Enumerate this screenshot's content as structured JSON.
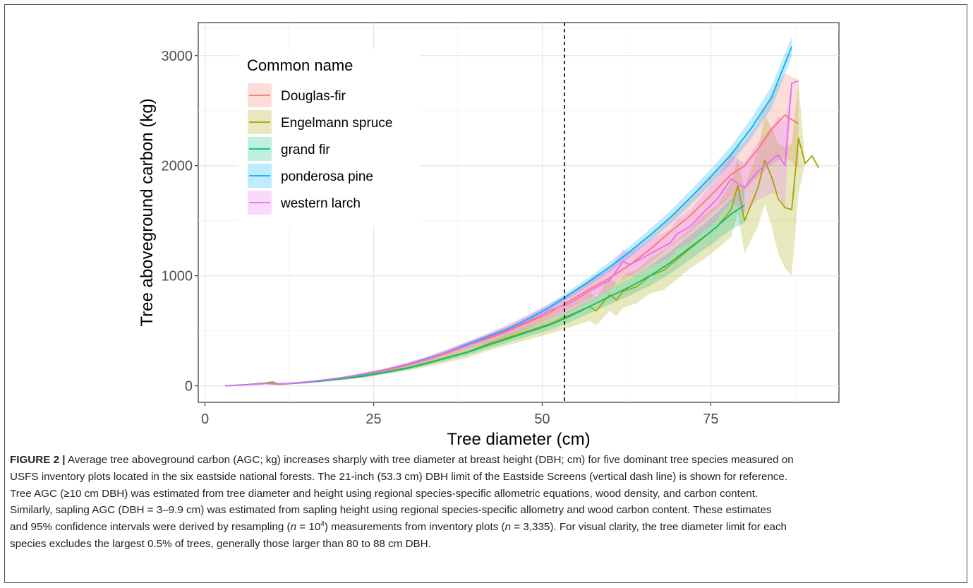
{
  "chart_data": {
    "type": "line",
    "xlabel": "Tree diameter (cm)",
    "ylabel": "Tree aboveground carbon (kg)",
    "xlim": [
      -1,
      94
    ],
    "ylim": [
      -150,
      3300
    ],
    "xticks": [
      0,
      25,
      50,
      75
    ],
    "yticks": [
      0,
      1000,
      2000,
      3000
    ],
    "grid": true,
    "vline": 53.3,
    "legend": {
      "title": "Common name",
      "position": "top-left, inside plot"
    },
    "series": [
      {
        "name": "Douglas-fir",
        "color": "#F8766D",
        "x": [
          3,
          6,
          9,
          11,
          12,
          15,
          18,
          21,
          24,
          27,
          30,
          33,
          36,
          39,
          42,
          45,
          48,
          51,
          54,
          57,
          60,
          63,
          66,
          69,
          72,
          75,
          78,
          80,
          82,
          84,
          86,
          88
        ],
        "y": [
          0,
          10,
          20,
          15,
          20,
          35,
          55,
          80,
          110,
          145,
          190,
          240,
          300,
          370,
          430,
          500,
          580,
          660,
          770,
          880,
          980,
          1100,
          1240,
          1400,
          1550,
          1730,
          1920,
          2000,
          2150,
          2330,
          2460,
          2380
        ],
        "band": [
          2,
          3,
          4,
          4,
          5,
          6,
          8,
          10,
          12,
          15,
          18,
          22,
          28,
          35,
          40,
          50,
          60,
          65,
          70,
          85,
          100,
          110,
          120,
          130,
          150,
          170,
          200,
          220,
          250,
          320,
          380,
          400
        ]
      },
      {
        "name": "Engelmann spruce",
        "color": "#A3A500",
        "x": [
          3,
          6,
          9,
          10,
          11,
          12,
          15,
          18,
          21,
          24,
          27,
          30,
          33,
          36,
          39,
          42,
          45,
          48,
          51,
          54,
          57,
          58,
          60,
          61,
          62,
          64,
          66,
          68,
          70,
          72,
          74,
          76,
          78,
          79,
          80,
          81,
          82,
          83,
          84,
          85,
          86,
          87,
          88,
          89,
          90,
          91
        ],
        "y": [
          0,
          10,
          25,
          35,
          15,
          18,
          32,
          50,
          70,
          95,
          130,
          165,
          210,
          260,
          310,
          380,
          440,
          500,
          560,
          640,
          720,
          680,
          830,
          780,
          860,
          900,
          1000,
          1050,
          1150,
          1250,
          1350,
          1450,
          1600,
          1820,
          1500,
          1650,
          1800,
          2050,
          1900,
          1700,
          1620,
          1600,
          2250,
          2020,
          2090,
          1980
        ],
        "band": [
          3,
          5,
          10,
          12,
          8,
          8,
          10,
          12,
          15,
          18,
          22,
          28,
          35,
          45,
          55,
          60,
          70,
          80,
          90,
          110,
          130,
          130,
          150,
          150,
          150,
          150,
          160,
          180,
          180,
          180,
          200,
          200,
          250,
          250,
          300,
          320,
          350,
          400,
          450,
          500,
          550,
          600,
          500,
          0,
          0,
          0
        ]
      },
      {
        "name": "grand fir",
        "color": "#00BF7D",
        "x": [
          3,
          6,
          9,
          12,
          15,
          18,
          21,
          24,
          27,
          30,
          33,
          36,
          39,
          42,
          45,
          48,
          51,
          54,
          57,
          60,
          63,
          66,
          69,
          72,
          75,
          78,
          80
        ],
        "y": [
          0,
          10,
          20,
          18,
          30,
          48,
          68,
          92,
          125,
          160,
          205,
          255,
          305,
          370,
          430,
          490,
          550,
          630,
          720,
          810,
          900,
          1000,
          1120,
          1260,
          1400,
          1560,
          1640
        ],
        "band": [
          2,
          3,
          4,
          4,
          5,
          6,
          8,
          10,
          12,
          15,
          18,
          22,
          26,
          30,
          35,
          40,
          45,
          55,
          60,
          70,
          80,
          90,
          100,
          110,
          120,
          140,
          160
        ]
      },
      {
        "name": "ponderosa pine",
        "color": "#00B0F6",
        "x": [
          3,
          6,
          9,
          12,
          15,
          18,
          21,
          24,
          27,
          30,
          33,
          36,
          39,
          42,
          45,
          48,
          51,
          54,
          57,
          60,
          63,
          66,
          69,
          72,
          75,
          78,
          81,
          84,
          87
        ],
        "y": [
          0,
          10,
          22,
          20,
          35,
          55,
          80,
          110,
          150,
          195,
          250,
          310,
          380,
          450,
          520,
          610,
          710,
          830,
          950,
          1080,
          1220,
          1370,
          1530,
          1710,
          1900,
          2100,
          2340,
          2620,
          3080
        ],
        "band": [
          2,
          3,
          4,
          4,
          5,
          6,
          7,
          8,
          10,
          12,
          14,
          16,
          18,
          20,
          22,
          25,
          30,
          35,
          40,
          45,
          50,
          55,
          60,
          65,
          70,
          80,
          90,
          100,
          90
        ]
      },
      {
        "name": "western larch",
        "color": "#E76BF3",
        "x": [
          3,
          6,
          9,
          12,
          15,
          18,
          21,
          24,
          27,
          30,
          33,
          36,
          39,
          42,
          45,
          48,
          51,
          54,
          57,
          60,
          62,
          63,
          66,
          69,
          70,
          72,
          74,
          76,
          78,
          80,
          82,
          84,
          85,
          86,
          87,
          88
        ],
        "y": [
          0,
          10,
          20,
          18,
          35,
          55,
          80,
          115,
          150,
          195,
          245,
          310,
          370,
          440,
          510,
          590,
          680,
          750,
          860,
          960,
          1130,
          1100,
          1200,
          1300,
          1380,
          1450,
          1580,
          1700,
          1880,
          1800,
          1950,
          2050,
          2100,
          2000,
          2750,
          2770
        ],
        "band": [
          2,
          3,
          4,
          4,
          5,
          7,
          9,
          12,
          15,
          18,
          22,
          28,
          35,
          40,
          50,
          60,
          70,
          80,
          90,
          100,
          110,
          110,
          120,
          130,
          140,
          150,
          170,
          190,
          210,
          230,
          260,
          300,
          350,
          400,
          0,
          0
        ]
      }
    ]
  },
  "caption": {
    "lead": "FIGURE 2 |",
    "line1_rest": " Average tree aboveground carbon (AGC; kg) increases sharply with tree diameter at breast height (DBH; cm) for five dominant tree species measured on",
    "line2": "USFS inventory plots located in the six eastside national forests. The 21-inch (53.3 cm) DBH limit of the Eastside Screens (vertical dash line) is shown for reference.",
    "line3": "Tree AGC (≥10 cm DBH) was estimated from tree diameter and height using regional species-specific allometric equations, wood density, and carbon content.",
    "line4": "Similarly, sapling AGC (DBH = 3–9.9 cm) was estimated from sapling height using regional species-specific allometry and wood carbon content. These estimates",
    "line5_a": "and 95% confidence intervals were derived by resampling (",
    "line5_n": "n",
    "line5_b": " = 10",
    "line5_exp": "4",
    "line5_c": ") measurements from inventory plots (",
    "line5_n2": "n",
    "line5_d": " = 3,335). For visual clarity, the tree diameter limit for each",
    "line6": "species excludes the largest 0.5% of trees, generally those larger than 80 to 88 cm DBH."
  }
}
